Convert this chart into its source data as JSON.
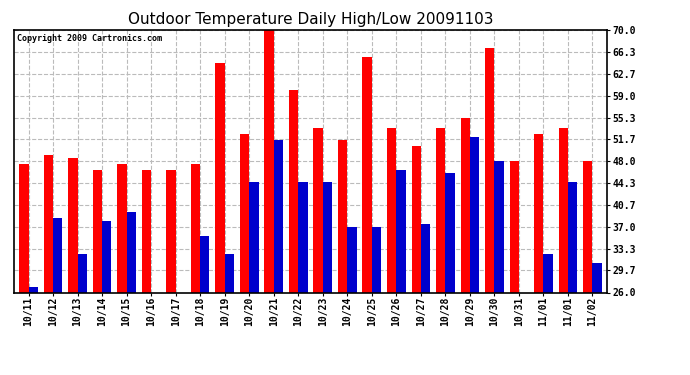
{
  "title": "Outdoor Temperature Daily High/Low 20091103",
  "copyright": "Copyright 2009 Cartronics.com",
  "categories": [
    "10/11",
    "10/12",
    "10/13",
    "10/14",
    "10/15",
    "10/16",
    "10/17",
    "10/18",
    "10/19",
    "10/20",
    "10/21",
    "10/22",
    "10/23",
    "10/24",
    "10/25",
    "10/26",
    "10/27",
    "10/28",
    "10/29",
    "10/30",
    "10/31",
    "11/01",
    "11/01",
    "11/02"
  ],
  "high": [
    47.5,
    49.0,
    48.5,
    46.5,
    47.5,
    46.5,
    46.5,
    47.5,
    64.5,
    52.5,
    70.0,
    60.0,
    53.5,
    51.5,
    65.5,
    53.5,
    50.5,
    53.5,
    55.3,
    67.0,
    48.0,
    52.5,
    53.5,
    48.0
  ],
  "low": [
    27.0,
    38.5,
    32.5,
    38.0,
    39.5,
    26.0,
    26.0,
    35.5,
    32.5,
    44.5,
    51.5,
    44.5,
    44.5,
    37.0,
    37.0,
    46.5,
    37.5,
    46.0,
    52.0,
    48.0,
    26.0,
    32.5,
    44.5,
    31.0
  ],
  "high_color": "#ff0000",
  "low_color": "#0000cc",
  "ymin": 26.0,
  "ymax": 70.0,
  "yticks": [
    26.0,
    29.7,
    33.3,
    37.0,
    40.7,
    44.3,
    48.0,
    51.7,
    55.3,
    59.0,
    62.7,
    66.3,
    70.0
  ],
  "bg_color": "#ffffff",
  "grid_color": "#bbbbbb",
  "title_fontsize": 11,
  "tick_fontsize": 7,
  "bar_width": 0.38
}
